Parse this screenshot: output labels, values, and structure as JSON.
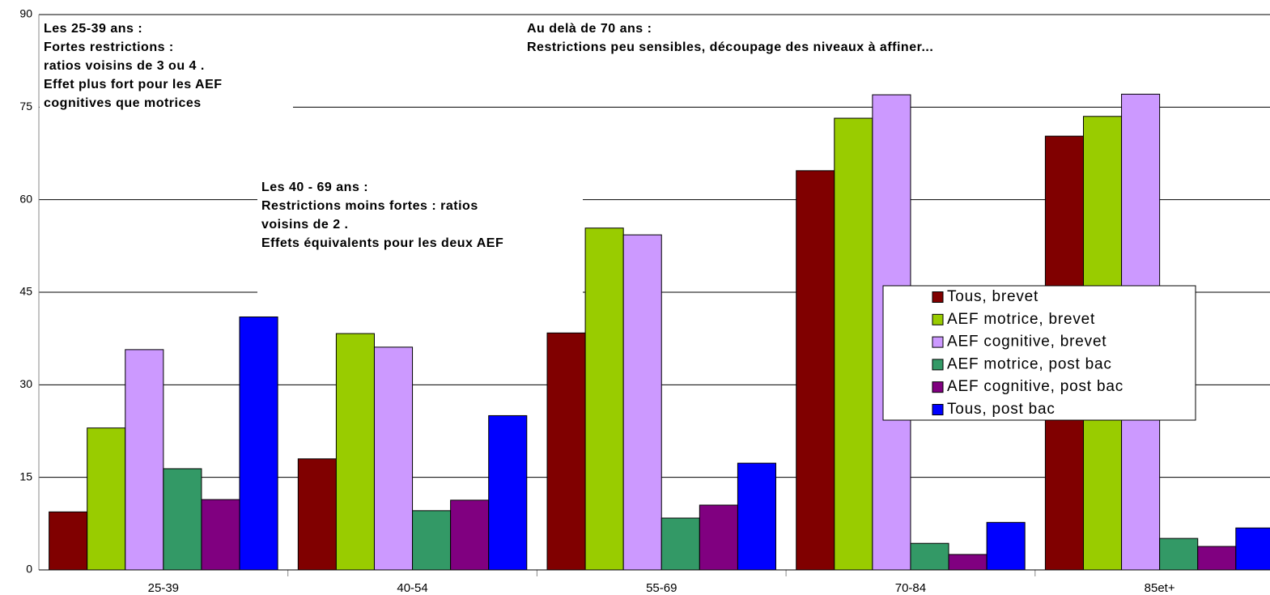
{
  "chart_data": {
    "type": "bar",
    "categories": [
      "25-39",
      "40-54",
      "55-69",
      "70-84",
      "85et+"
    ],
    "series": [
      {
        "name": "Tous, brevet",
        "color": "#800000",
        "values": [
          9.4,
          18,
          38.4,
          64.7,
          70.3
        ]
      },
      {
        "name": "AEF motrice, brevet",
        "color": "#99cc00",
        "values": [
          23,
          38.3,
          55.4,
          73.2,
          73.5
        ]
      },
      {
        "name": "AEF cognitive, brevet",
        "color": "#cc99ff",
        "values": [
          35.7,
          36.1,
          54.3,
          77,
          77.1
        ]
      },
      {
        "name": "AEF motrice, post bac",
        "color": "#339966",
        "values": [
          16.4,
          9.6,
          8.4,
          4.3,
          5.1
        ]
      },
      {
        "name": "AEF cognitive, post bac",
        "color": "#800080",
        "values": [
          11.4,
          11.3,
          10.5,
          2.5,
          3.8
        ]
      },
      {
        "name": "Tous, post bac",
        "color": "#0000ff",
        "values": [
          41,
          25,
          17.3,
          7.7,
          6.8
        ]
      }
    ],
    "ylim": [
      0,
      90
    ],
    "yticks": [
      0,
      15,
      30,
      45,
      60,
      75,
      90
    ],
    "grid": true,
    "annotations": [
      [
        "Les 25-39 ans :",
        "Fortes restrictions :",
        "ratios voisins de 3 ou 4 .",
        "Effet plus fort pour les AEF",
        "cognitives que motrices"
      ],
      [
        "Les 40 - 69 ans :",
        "Restrictions moins fortes : ratios",
        "voisins de 2  .",
        "Effets équivalents pour les deux AEF"
      ],
      [
        "Au delà de 70 ans :",
        "Restrictions peu sensibles, découpage des niveaux  à affiner..."
      ]
    ]
  }
}
